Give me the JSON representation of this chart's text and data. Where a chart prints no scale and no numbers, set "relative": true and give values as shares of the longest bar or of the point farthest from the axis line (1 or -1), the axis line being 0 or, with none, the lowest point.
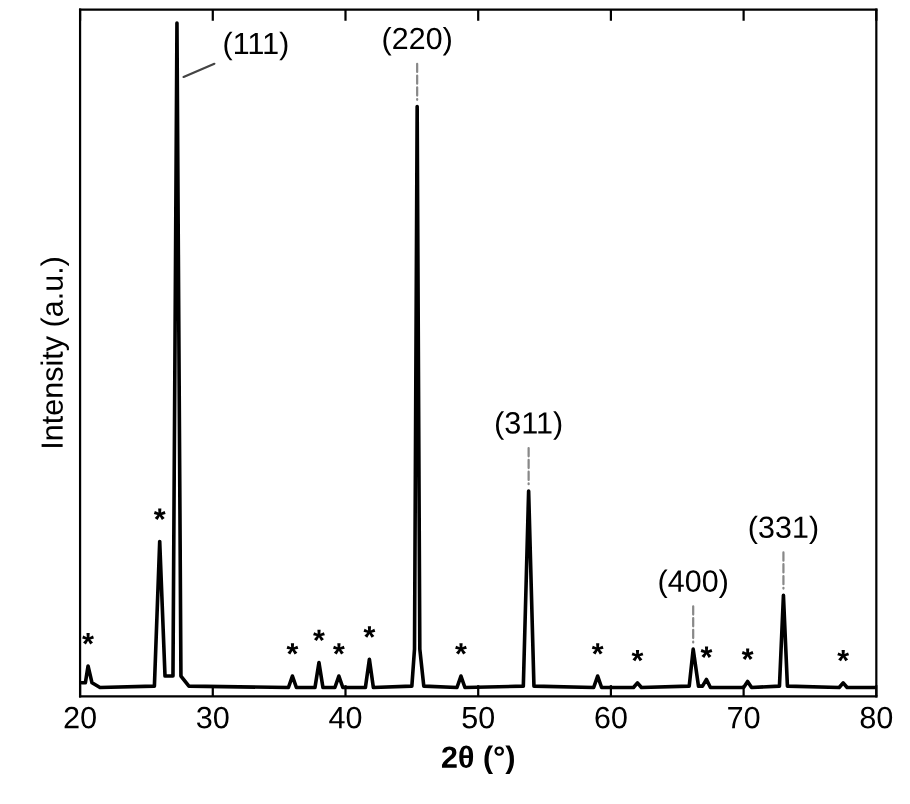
{
  "chart_data": {
    "type": "line",
    "relative": true,
    "xlabel": "2θ (°)",
    "ylabel": "Intensity (a.u.)",
    "xlim": [
      20,
      80
    ],
    "xticks": [
      20,
      30,
      40,
      50,
      60,
      70,
      80
    ],
    "grid": false,
    "legend": false,
    "marker": "none",
    "line_style": "solid",
    "series": [
      {
        "color": "#000000",
        "x": [
          20,
          20.4,
          20.6,
          20.9,
          21.5,
          25.6,
          26,
          26.4,
          27.0,
          27.3,
          27.6,
          28.2,
          35.7,
          36,
          36.3,
          37.7,
          38,
          38.3,
          39.2,
          39.5,
          39.8,
          41.5,
          41.8,
          42.1,
          45.0,
          45.2,
          45.4,
          45.6,
          45.9,
          48.4,
          48.7,
          49,
          53.4,
          53.8,
          54.2,
          58.7,
          59,
          59.3,
          61.7,
          62,
          62.3,
          65.9,
          66.2,
          66.6,
          66.9,
          67.2,
          67.5,
          70.0,
          70.3,
          70.6,
          72.7,
          73,
          73.3,
          77.2,
          77.5,
          77.8,
          80
        ],
        "values": [
          0.02,
          0.02,
          0.045,
          0.02,
          0.013,
          0.015,
          0.23,
          0.03,
          0.03,
          1.0,
          0.03,
          0.015,
          0.013,
          0.03,
          0.013,
          0.013,
          0.05,
          0.013,
          0.013,
          0.03,
          0.013,
          0.013,
          0.055,
          0.013,
          0.015,
          0.07,
          0.876,
          0.07,
          0.015,
          0.013,
          0.03,
          0.013,
          0.015,
          0.305,
          0.015,
          0.013,
          0.03,
          0.013,
          0.013,
          0.02,
          0.013,
          0.015,
          0.07,
          0.015,
          0.015,
          0.025,
          0.013,
          0.013,
          0.022,
          0.013,
          0.015,
          0.15,
          0.015,
          0.013,
          0.02,
          0.013,
          0.013
        ]
      }
    ],
    "annotations": [
      {
        "text": "(111)",
        "x": 27.3,
        "y": 0.95
      },
      {
        "text": "(220)",
        "x": 45.4,
        "y": 0.876
      },
      {
        "text": "(311)",
        "x": 53.8,
        "y": 0.305
      },
      {
        "text": "(400)",
        "x": 66.2,
        "y": 0.07
      },
      {
        "text": "(331)",
        "x": 73,
        "y": 0.15
      },
      {
        "text": "*",
        "x": 20.6,
        "y": 0.045
      },
      {
        "text": "*",
        "x": 26,
        "y": 0.23
      },
      {
        "text": "*",
        "x": 36,
        "y": 0.03
      },
      {
        "text": "*",
        "x": 38,
        "y": 0.05
      },
      {
        "text": "*",
        "x": 39.5,
        "y": 0.03
      },
      {
        "text": "*",
        "x": 41.8,
        "y": 0.055
      },
      {
        "text": "*",
        "x": 48.7,
        "y": 0.03
      },
      {
        "text": "*",
        "x": 59,
        "y": 0.03
      },
      {
        "text": "*",
        "x": 62,
        "y": 0.02
      },
      {
        "text": "*",
        "x": 67.2,
        "y": 0.025
      },
      {
        "text": "*",
        "x": 70.3,
        "y": 0.022
      },
      {
        "text": "*",
        "x": 77.5,
        "y": 0.02
      }
    ]
  }
}
